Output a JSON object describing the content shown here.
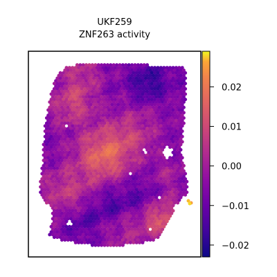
{
  "chart_data": {
    "type": "heatmap",
    "title": [
      "UKF259",
      "ZNF263 activity"
    ],
    "xlabel": "",
    "ylabel": "",
    "axes_ticks_visible": false,
    "colormap": "plasma",
    "colorbar": {
      "range": [
        -0.023,
        0.029
      ],
      "ticks": [
        0.02,
        0.01,
        0.0,
        -0.01,
        -0.02
      ],
      "tick_labels": [
        "0.02",
        "0.01",
        "0.00",
        "−0.01",
        "−0.02"
      ],
      "placement": "right"
    },
    "description_values": {
      "typical_range": [
        -0.015,
        0.01
      ],
      "hotspots": [
        {
          "region": "center-left",
          "value": 0.012
        },
        {
          "region": "lower-right",
          "value": 0.01
        },
        {
          "region": "far-right outlier spots",
          "value": 0.027
        }
      ]
    }
  }
}
